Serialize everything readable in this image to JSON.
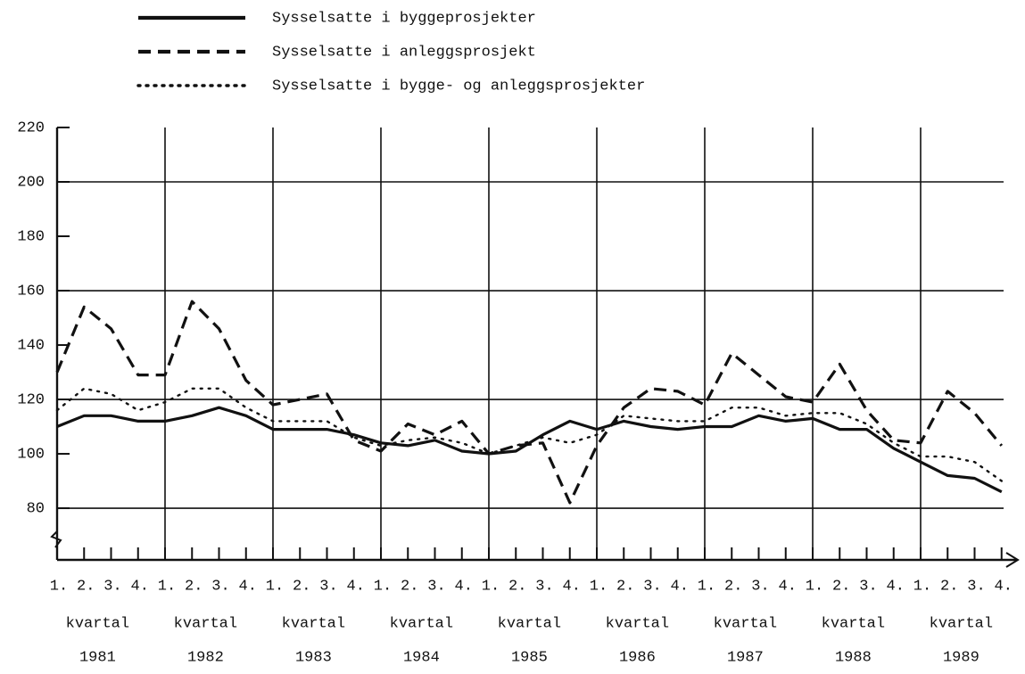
{
  "chart_data": {
    "type": "line",
    "categories": [
      "1.",
      "2.",
      "3.",
      "4.",
      "1.",
      "2.",
      "3.",
      "4.",
      "1.",
      "2.",
      "3.",
      "4.",
      "1.",
      "2.",
      "3.",
      "4.",
      "1.",
      "2.",
      "3.",
      "4.",
      "1.",
      "2.",
      "3.",
      "4.",
      "1.",
      "2.",
      "3.",
      "4.",
      "1.",
      "2.",
      "3.",
      "4.",
      "1.",
      "2.",
      "3.",
      "4."
    ],
    "groups": [
      {
        "label": "kvartal",
        "year": "1981"
      },
      {
        "label": "kvartal",
        "year": "1982"
      },
      {
        "label": "kvartal",
        "year": "1983"
      },
      {
        "label": "kvartal",
        "year": "1984"
      },
      {
        "label": "kvartal",
        "year": "1985"
      },
      {
        "label": "kvartal",
        "year": "1986"
      },
      {
        "label": "kvartal",
        "year": "1987"
      },
      {
        "label": "kvartal",
        "year": "1988"
      },
      {
        "label": "kvartal",
        "year": "1989"
      }
    ],
    "series": [
      {
        "name": "Sysselsatte i byggeprosjekter",
        "color": "#111111",
        "dash": "solid",
        "values": [
          110,
          114,
          114,
          112,
          112,
          114,
          117,
          114,
          109,
          109,
          109,
          107,
          104,
          103,
          105,
          101,
          100,
          101,
          107,
          112,
          109,
          112,
          110,
          109,
          110,
          110,
          114,
          112,
          113,
          109,
          109,
          102,
          97,
          92,
          91,
          86
        ]
      },
      {
        "name": "Sysselsatte i anleggsprosjekt",
        "color": "#111111",
        "dash": "dashed",
        "values": [
          130,
          154,
          146,
          129,
          129,
          156,
          146,
          127,
          118,
          120,
          122,
          105,
          101,
          111,
          107,
          112,
          100,
          103,
          104,
          82,
          103,
          117,
          124,
          123,
          118,
          137,
          129,
          121,
          119,
          133,
          116,
          105,
          104,
          123,
          115,
          103
        ]
      },
      {
        "name": "Sysselsatte i bygge- og anleggsprosjekter",
        "color": "#111111",
        "dash": "dotted",
        "values": [
          116,
          124,
          122,
          116,
          119,
          124,
          124,
          117,
          112,
          112,
          112,
          106,
          103,
          105,
          106,
          104,
          100,
          103,
          106,
          104,
          107,
          114,
          113,
          112,
          112,
          117,
          117,
          114,
          115,
          115,
          111,
          104,
          99,
          99,
          97,
          90
        ]
      }
    ],
    "ylim": [
      61,
      220
    ],
    "yticks": [
      80,
      100,
      120,
      140,
      160,
      180,
      200,
      220
    ],
    "gridlines": [
      80,
      120,
      160,
      200
    ],
    "year_lines": true
  }
}
